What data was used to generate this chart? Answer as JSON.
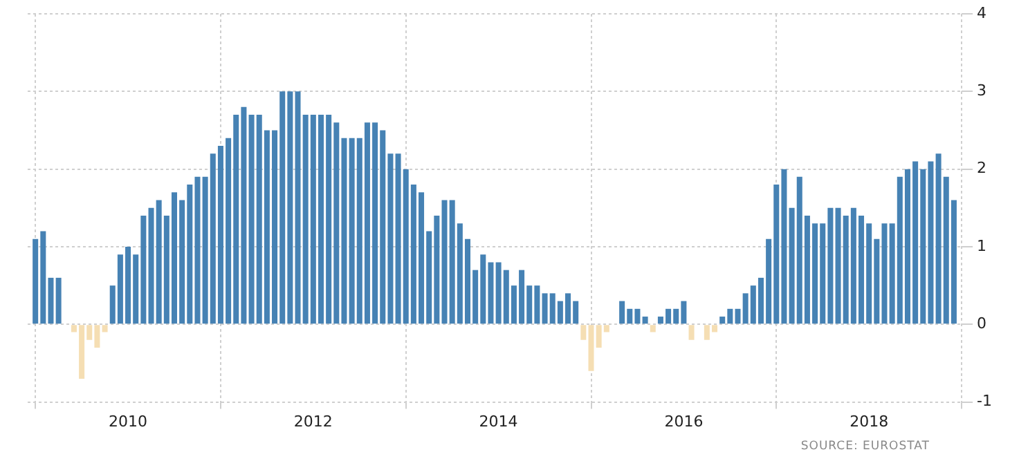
{
  "chart_data": {
    "type": "bar",
    "x": [
      "2009-01",
      "2009-02",
      "2009-03",
      "2009-04",
      "2009-05",
      "2009-06",
      "2009-07",
      "2009-08",
      "2009-09",
      "2009-10",
      "2009-11",
      "2009-12",
      "2010-01",
      "2010-02",
      "2010-03",
      "2010-04",
      "2010-05",
      "2010-06",
      "2010-07",
      "2010-08",
      "2010-09",
      "2010-10",
      "2010-11",
      "2010-12",
      "2011-01",
      "2011-02",
      "2011-03",
      "2011-04",
      "2011-05",
      "2011-06",
      "2011-07",
      "2011-08",
      "2011-09",
      "2011-10",
      "2011-11",
      "2011-12",
      "2012-01",
      "2012-02",
      "2012-03",
      "2012-04",
      "2012-05",
      "2012-06",
      "2012-07",
      "2012-08",
      "2012-09",
      "2012-10",
      "2012-11",
      "2012-12",
      "2013-01",
      "2013-02",
      "2013-03",
      "2013-04",
      "2013-05",
      "2013-06",
      "2013-07",
      "2013-08",
      "2013-09",
      "2013-10",
      "2013-11",
      "2013-12",
      "2014-01",
      "2014-02",
      "2014-03",
      "2014-04",
      "2014-05",
      "2014-06",
      "2014-07",
      "2014-08",
      "2014-09",
      "2014-10",
      "2014-11",
      "2014-12",
      "2015-01",
      "2015-02",
      "2015-03",
      "2015-04",
      "2015-05",
      "2015-06",
      "2015-07",
      "2015-08",
      "2015-09",
      "2015-10",
      "2015-11",
      "2015-12",
      "2016-01",
      "2016-02",
      "2016-03",
      "2016-04",
      "2016-05",
      "2016-06",
      "2016-07",
      "2016-08",
      "2016-09",
      "2016-10",
      "2016-11",
      "2016-12",
      "2017-01",
      "2017-02",
      "2017-03",
      "2017-04",
      "2017-05",
      "2017-06",
      "2017-07",
      "2017-08",
      "2017-09",
      "2017-10",
      "2017-11",
      "2017-12",
      "2018-01",
      "2018-02",
      "2018-03",
      "2018-04",
      "2018-05",
      "2018-06",
      "2018-07",
      "2018-08",
      "2018-09",
      "2018-10",
      "2018-11",
      "2018-12"
    ],
    "values": [
      1.1,
      1.2,
      0.6,
      0.6,
      0.0,
      -0.1,
      -0.7,
      -0.2,
      -0.3,
      -0.1,
      0.5,
      0.9,
      1.0,
      0.9,
      1.4,
      1.5,
      1.6,
      1.4,
      1.7,
      1.6,
      1.8,
      1.9,
      1.9,
      2.2,
      2.3,
      2.4,
      2.7,
      2.8,
      2.7,
      2.7,
      2.5,
      2.5,
      3.0,
      3.0,
      3.0,
      2.7,
      2.7,
      2.7,
      2.7,
      2.6,
      2.4,
      2.4,
      2.4,
      2.6,
      2.6,
      2.5,
      2.2,
      2.2,
      2.0,
      1.8,
      1.7,
      1.2,
      1.4,
      1.6,
      1.6,
      1.3,
      1.1,
      0.7,
      0.9,
      0.8,
      0.8,
      0.7,
      0.5,
      0.7,
      0.5,
      0.5,
      0.4,
      0.4,
      0.3,
      0.4,
      0.3,
      -0.2,
      -0.6,
      -0.3,
      -0.1,
      0.0,
      0.3,
      0.2,
      0.2,
      0.1,
      -0.1,
      0.1,
      0.2,
      0.2,
      0.3,
      -0.2,
      0.0,
      -0.2,
      -0.1,
      0.1,
      0.2,
      0.2,
      0.4,
      0.5,
      0.6,
      1.1,
      1.8,
      2.0,
      1.5,
      1.9,
      1.4,
      1.3,
      1.3,
      1.5,
      1.5,
      1.4,
      1.5,
      1.4,
      1.3,
      1.1,
      1.3,
      1.3,
      1.9,
      2.0,
      2.1,
      2.0,
      2.1,
      2.2,
      1.9,
      1.6
    ],
    "colors": [
      "#4682b4",
      "#4682b4",
      "#4682b4",
      "#4682b4",
      "#4682b4",
      "#f5deb3",
      "#f5deb3",
      "#f5deb3",
      "#f5deb3",
      "#f5deb3",
      "#4682b4",
      "#4682b4",
      "#4682b4",
      "#4682b4",
      "#4682b4",
      "#4682b4",
      "#4682b4",
      "#4682b4",
      "#4682b4",
      "#4682b4",
      "#4682b4",
      "#4682b4",
      "#4682b4",
      "#4682b4",
      "#4682b4",
      "#4682b4",
      "#4682b4",
      "#4682b4",
      "#4682b4",
      "#4682b4",
      "#4682b4",
      "#4682b4",
      "#4682b4",
      "#4682b4",
      "#4682b4",
      "#4682b4",
      "#4682b4",
      "#4682b4",
      "#4682b4",
      "#4682b4",
      "#4682b4",
      "#4682b4",
      "#4682b4",
      "#4682b4",
      "#4682b4",
      "#4682b4",
      "#4682b4",
      "#4682b4",
      "#4682b4",
      "#4682b4",
      "#4682b4",
      "#4682b4",
      "#4682b4",
      "#4682b4",
      "#4682b4",
      "#4682b4",
      "#4682b4",
      "#4682b4",
      "#4682b4",
      "#4682b4",
      "#4682b4",
      "#4682b4",
      "#4682b4",
      "#4682b4",
      "#4682b4",
      "#4682b4",
      "#4682b4",
      "#4682b4",
      "#4682b4",
      "#4682b4",
      "#4682b4",
      "#f5deb3",
      "#f5deb3",
      "#f5deb3",
      "#f5deb3",
      "#4682b4",
      "#4682b4",
      "#4682b4",
      "#4682b4",
      "#4682b4",
      "#f5deb3",
      "#4682b4",
      "#4682b4",
      "#4682b4",
      "#4682b4",
      "#f5deb3",
      "#4682b4",
      "#f5deb3",
      "#f5deb3",
      "#4682b4",
      "#4682b4",
      "#4682b4",
      "#4682b4",
      "#4682b4",
      "#4682b4",
      "#4682b4",
      "#4682b4",
      "#4682b4",
      "#4682b4",
      "#4682b4",
      "#4682b4",
      "#4682b4",
      "#4682b4",
      "#4682b4",
      "#4682b4",
      "#4682b4",
      "#4682b4",
      "#4682b4",
      "#4682b4",
      "#4682b4",
      "#4682b4",
      "#4682b4",
      "#4682b4",
      "#4682b4",
      "#4682b4",
      "#4682b4",
      "#4682b4",
      "#4682b4",
      "#4682b4",
      "#4682b4"
    ],
    "xlim": [
      "2008-12",
      "2019-01"
    ],
    "xticks": [
      "2010",
      "2012",
      "2014",
      "2016",
      "2018"
    ],
    "ylim": [
      -1,
      4
    ],
    "yticks": [
      -1,
      0,
      1,
      2,
      3,
      4
    ],
    "grid": true,
    "annotations": [
      "SOURCE: EUROSTAT"
    ]
  }
}
